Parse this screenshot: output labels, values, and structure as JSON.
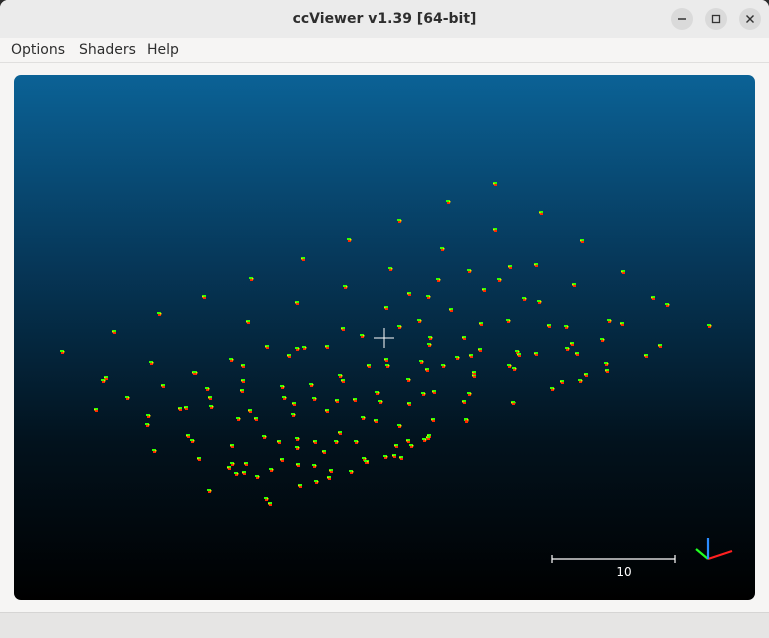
{
  "window": {
    "title": "ccViewer v1.39 [64-bit]",
    "controls": [
      "minimize-icon",
      "maximize-icon",
      "close-icon"
    ]
  },
  "menubar": {
    "items": [
      {
        "label": "Options"
      },
      {
        "label": "Shaders"
      },
      {
        "label": "Help"
      }
    ]
  },
  "viewport": {
    "background_top": "#0b6296",
    "background_bottom": "#000000",
    "point_colors": [
      "#33ff00",
      "#ff2a00",
      "#ffd000"
    ],
    "scale_bar_label": "10",
    "axis_colors": {
      "x": "#ff2020",
      "y": "#20ff20",
      "z": "#2060ff"
    }
  }
}
